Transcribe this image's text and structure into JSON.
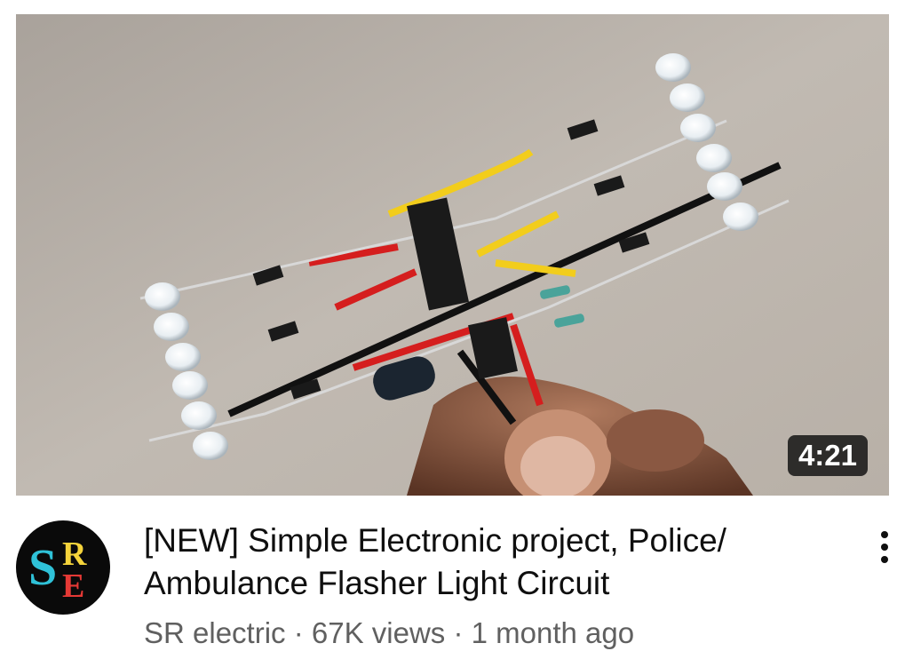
{
  "video": {
    "duration": "4:21",
    "title": "[NEW] Simple Electronic project, Police/ Ambulance Flasher Light Circuit",
    "channel": "SR electric",
    "separator": "·",
    "views": "67K views",
    "age": "1 month ago"
  },
  "channel_logo": {
    "letters": "SRE",
    "colors": [
      "#f4d33b",
      "#2fc2d8",
      "#e53935"
    ]
  },
  "icons": {
    "menu": "more-vert-icon"
  },
  "colors": {
    "text_primary": "#0f0f0f",
    "text_secondary": "#606060",
    "background": "#ffffff"
  }
}
